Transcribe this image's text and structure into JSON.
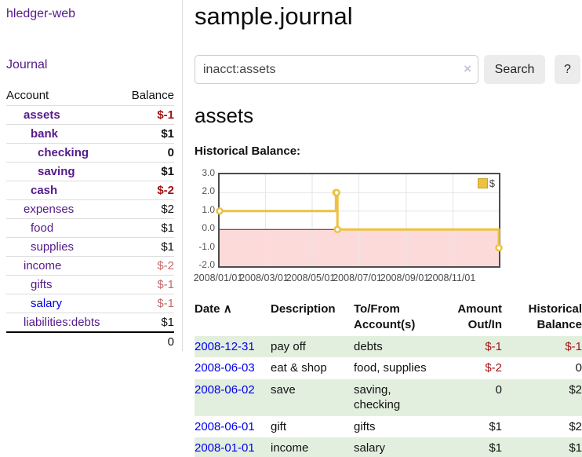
{
  "palette": {
    "link_purple": "#551a8b",
    "link_blue": "#0000e6",
    "negative_strong": "#a21313",
    "negative_soft": "#c46a6a",
    "row_green": "#e3efde",
    "chart_gold": "#edc240",
    "chart_negative_region": "#fcdada",
    "chart_zero_line": "#990000",
    "chart_grid": "#e6e6e6"
  },
  "app": {
    "brand": "hledger-web",
    "nav_journal": "Journal"
  },
  "sidebar": {
    "headers": {
      "account": "Account",
      "balance": "Balance"
    },
    "accounts": [
      {
        "name": "assets",
        "depth": 1,
        "bold": true,
        "link_color": "purple",
        "balance": "$-1",
        "balance_class": "neg"
      },
      {
        "name": "bank",
        "depth": 2,
        "bold": true,
        "link_color": "purple",
        "balance": "$1",
        "balance_class": ""
      },
      {
        "name": "checking",
        "depth": 3,
        "bold": true,
        "link_color": "purple",
        "balance": "0",
        "balance_class": ""
      },
      {
        "name": "saving",
        "depth": 3,
        "bold": true,
        "link_color": "purple",
        "balance": "$1",
        "balance_class": ""
      },
      {
        "name": "cash",
        "depth": 2,
        "bold": true,
        "link_color": "purple",
        "balance": "$-2",
        "balance_class": "neg"
      },
      {
        "name": "expenses",
        "depth": 1,
        "bold": false,
        "link_color": "purple",
        "balance": "$2",
        "balance_class": ""
      },
      {
        "name": "food",
        "depth": 2,
        "bold": false,
        "link_color": "purple",
        "balance": "$1",
        "balance_class": ""
      },
      {
        "name": "supplies",
        "depth": 2,
        "bold": false,
        "link_color": "purple",
        "balance": "$1",
        "balance_class": ""
      },
      {
        "name": "income",
        "depth": 1,
        "bold": false,
        "link_color": "purple",
        "balance": "$-2",
        "balance_class": "negsoft"
      },
      {
        "name": "gifts",
        "depth": 2,
        "bold": false,
        "link_color": "purple",
        "balance": "$-1",
        "balance_class": "negsoft"
      },
      {
        "name": "salary",
        "depth": 2,
        "bold": false,
        "link_color": "blue",
        "balance": "$-1",
        "balance_class": "negsoft"
      },
      {
        "name": "liabilities:debts",
        "depth": 1,
        "bold": false,
        "link_color": "purple",
        "balance": "$1",
        "balance_class": ""
      }
    ],
    "total": "0"
  },
  "main": {
    "title": "sample.journal",
    "search": {
      "value": "inacct:assets",
      "clear_icon": "×",
      "search_button": "Search",
      "help_button": "?"
    },
    "account_heading": "assets",
    "chart_label": "Historical Balance:"
  },
  "chart_data": {
    "type": "line",
    "step": true,
    "title": "Historical Balance:",
    "series": [
      {
        "name": "$",
        "color": "#edc240",
        "points": [
          [
            "2008-01-01",
            1
          ],
          [
            "2008-06-01",
            2
          ],
          [
            "2008-06-02",
            2
          ],
          [
            "2008-06-03",
            0
          ],
          [
            "2008-12-31",
            -1
          ]
        ]
      }
    ],
    "xlim": [
      "2008-01-01",
      "2008-12-31"
    ],
    "ylim": [
      -2,
      3
    ],
    "xticks": [
      "2008/01/01",
      "2008/03/01",
      "2008/05/01",
      "2008/07/01",
      "2008/09/01",
      "2008/11/01"
    ],
    "yticks": [
      "3.0",
      "2.0",
      "1.0",
      "0.0",
      "-1.0",
      "-2.0"
    ],
    "grid": true,
    "legend_position": "top-right",
    "legend_label": "$",
    "negative_region_color": "#fcdada",
    "zero_line_color": "#990000",
    "grid_color": "#e6e6e6"
  },
  "register": {
    "headers": {
      "date": "Date",
      "sort_indicator": "∧",
      "description": "Description",
      "accounts": "To/From Account(s)",
      "amount": "Amount Out/In",
      "balance": "Historical Balance"
    },
    "rows": [
      {
        "date": "2008-12-31",
        "description": "pay off",
        "accounts": "debts",
        "amount": "$-1",
        "amount_neg": true,
        "balance": "$-1",
        "balance_neg": true,
        "shaded": true
      },
      {
        "date": "2008-06-03",
        "description": "eat & shop",
        "accounts": "food, supplies",
        "amount": "$-2",
        "amount_neg": true,
        "balance": "0",
        "balance_neg": false,
        "shaded": false
      },
      {
        "date": "2008-06-02",
        "description": "save",
        "accounts": "saving, checking",
        "amount": "0",
        "amount_neg": false,
        "balance": "$2",
        "balance_neg": false,
        "shaded": true
      },
      {
        "date": "2008-06-01",
        "description": "gift",
        "accounts": "gifts",
        "amount": "$1",
        "amount_neg": false,
        "balance": "$2",
        "balance_neg": false,
        "shaded": false
      },
      {
        "date": "2008-01-01",
        "description": "income",
        "accounts": "salary",
        "amount": "$1",
        "amount_neg": false,
        "balance": "$1",
        "balance_neg": false,
        "shaded": true
      }
    ]
  }
}
